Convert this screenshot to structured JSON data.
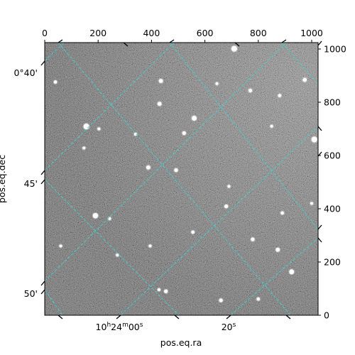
{
  "chart_data": {
    "type": "image",
    "xlabel": "pos.eq.ra",
    "ylabel": "pos.eq.dec",
    "pixel_axes": {
      "x_range": [
        0,
        1024
      ],
      "y_range": [
        0,
        1024
      ],
      "top_ticks": [
        "0",
        "200",
        "400",
        "600",
        "800",
        "1000"
      ],
      "right_ticks": [
        "0",
        "200",
        "400",
        "600",
        "800",
        "1000"
      ]
    },
    "world_ticks": {
      "ra": {
        "labels": [
          {
            "value": "10h24m00s",
            "major": "10",
            "h": "h",
            "minute": "24",
            "m": "m",
            "sec": "00",
            "s": "s"
          },
          {
            "value": "20s",
            "sec": "20",
            "s": "s"
          }
        ]
      },
      "dec": {
        "labels": [
          "0°40'",
          "45'",
          "50'"
        ]
      }
    },
    "grid": true,
    "grid_color": "#40d0d0",
    "image_colormap": "gray",
    "stars": [
      {
        "x": 710,
        "y": 1001,
        "mag": 1.0
      },
      {
        "x": 156,
        "y": 709,
        "mag": 1.0
      },
      {
        "x": 1010,
        "y": 660,
        "mag": 1.0
      },
      {
        "x": 560,
        "y": 740,
        "mag": 0.8
      },
      {
        "x": 190,
        "y": 374,
        "mag": 0.9
      },
      {
        "x": 925,
        "y": 163,
        "mag": 0.8
      },
      {
        "x": 435,
        "y": 880,
        "mag": 0.6
      },
      {
        "x": 430,
        "y": 794,
        "mag": 0.6
      },
      {
        "x": 388,
        "y": 555,
        "mag": 0.6
      },
      {
        "x": 974,
        "y": 884,
        "mag": 0.6
      },
      {
        "x": 770,
        "y": 844,
        "mag": 0.5
      },
      {
        "x": 522,
        "y": 684,
        "mag": 0.5
      },
      {
        "x": 492,
        "y": 545,
        "mag": 0.5
      },
      {
        "x": 680,
        "y": 409,
        "mag": 0.5
      },
      {
        "x": 779,
        "y": 285,
        "mag": 0.5
      },
      {
        "x": 873,
        "y": 246,
        "mag": 0.6
      },
      {
        "x": 660,
        "y": 56,
        "mag": 0.5
      },
      {
        "x": 454,
        "y": 90,
        "mag": 0.5
      },
      {
        "x": 555,
        "y": 312,
        "mag": 0.4
      },
      {
        "x": 880,
        "y": 825,
        "mag": 0.4
      },
      {
        "x": 890,
        "y": 384,
        "mag": 0.4
      },
      {
        "x": 645,
        "y": 870,
        "mag": 0.3
      },
      {
        "x": 40,
        "y": 876,
        "mag": 0.4
      },
      {
        "x": 147,
        "y": 628,
        "mag": 0.3
      },
      {
        "x": 800,
        "y": 61,
        "mag": 0.4
      },
      {
        "x": 243,
        "y": 363,
        "mag": 0.3
      },
      {
        "x": 272,
        "y": 226,
        "mag": 0.3
      },
      {
        "x": 60,
        "y": 260,
        "mag": 0.3
      },
      {
        "x": 428,
        "y": 96,
        "mag": 0.3
      },
      {
        "x": 340,
        "y": 680,
        "mag": 0.3
      },
      {
        "x": 690,
        "y": 484,
        "mag": 0.3
      },
      {
        "x": 850,
        "y": 710,
        "mag": 0.3
      },
      {
        "x": 203,
        "y": 700,
        "mag": 0.3
      },
      {
        "x": 395,
        "y": 260,
        "mag": 0.3
      },
      {
        "x": 1000,
        "y": 420,
        "mag": 0.3
      }
    ]
  }
}
